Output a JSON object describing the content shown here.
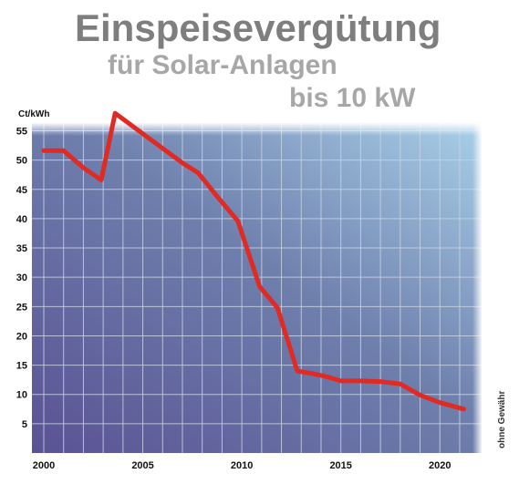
{
  "chart_data": {
    "type": "line",
    "title": "Einspeisevergütung",
    "subtitle_1": "für Solar-Anlagen",
    "subtitle_2": "bis 10 kW",
    "ylabel": "Ct/kWh",
    "xlabel": "",
    "note": "ohne Gewähr",
    "x_ticks": [
      2000,
      2005,
      2010,
      2015,
      2020
    ],
    "y_ticks": [
      5,
      10,
      15,
      20,
      25,
      30,
      35,
      40,
      45,
      50,
      55
    ],
    "xlim": [
      2000,
      2021.6
    ],
    "ylim": [
      0,
      58.5
    ],
    "grid": true,
    "series": [
      {
        "x": [
          2000.0,
          2001.0,
          2002.0,
          2002.9,
          2003.6,
          2005.0,
          2006.0,
          2007.0,
          2007.8,
          2008.8,
          2009.8,
          2010.9,
          2011.8,
          2012.8,
          2013.5,
          2014.2,
          2015.0,
          2016.0,
          2017.0,
          2018.0,
          2019.0,
          2020.0,
          2021.2
        ],
        "y": [
          51.6,
          51.6,
          48.7,
          46.6,
          58.0,
          54.5,
          52.0,
          49.5,
          47.8,
          43.6,
          39.6,
          28.4,
          24.8,
          14.0,
          13.6,
          13.1,
          12.3,
          12.3,
          12.2,
          11.8,
          9.9,
          8.6,
          7.5
        ],
        "color": "#e02a24"
      }
    ],
    "colors": {
      "plot_bg_left": "#5a5294",
      "plot_bg_right": "#a9d1e9",
      "grid": "#c8d2e3",
      "line": "#e02a24"
    }
  }
}
